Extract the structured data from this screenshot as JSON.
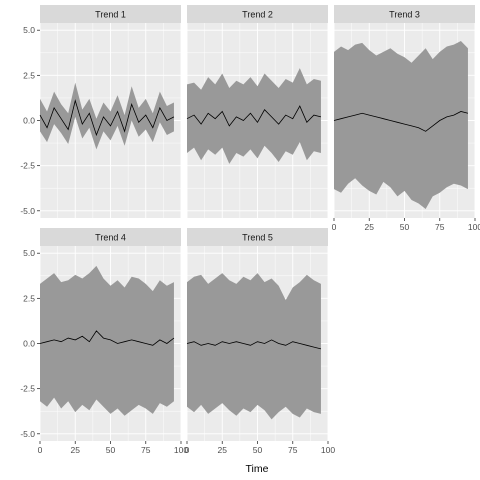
{
  "chart_data": {
    "type": "area",
    "facet_variable": "trend",
    "xlabel": "Time",
    "ylabel": "",
    "xlim": [
      0,
      100
    ],
    "ylim": [
      -5.4,
      5.4
    ],
    "x_ticks": [
      0,
      25,
      50,
      75,
      100
    ],
    "y_ticks": [
      -5.0,
      -2.5,
      0.0,
      2.5,
      5.0
    ],
    "x_tick_labels": [
      "0",
      "25",
      "50",
      "75",
      "100"
    ],
    "y_tick_labels": [
      "-5.0",
      "-2.5",
      "0.0",
      "2.5",
      "5.0"
    ],
    "grid": true,
    "colors": {
      "ribbon": "#999999",
      "line": "#000000",
      "panel": "#ebebeb",
      "strip": "#d9d9d9"
    },
    "series": [
      {
        "name": "Trend 1",
        "x": [
          0,
          5,
          10,
          15,
          20,
          25,
          30,
          35,
          40,
          45,
          50,
          55,
          60,
          65,
          70,
          75,
          80,
          85,
          90,
          95
        ],
        "mean": [
          0.3,
          -0.4,
          0.7,
          0.1,
          -0.5,
          1.1,
          -0.2,
          0.4,
          -0.8,
          0.2,
          -0.3,
          0.5,
          -0.6,
          0.9,
          -0.1,
          0.3,
          -0.4,
          0.7,
          0.0,
          0.2
        ],
        "lower": [
          -0.6,
          -1.2,
          -0.2,
          -0.7,
          -1.3,
          0.2,
          -1.0,
          -0.4,
          -1.6,
          -0.6,
          -1.1,
          -0.3,
          -1.4,
          0.0,
          -0.9,
          -0.5,
          -1.2,
          -0.1,
          -0.8,
          -0.6
        ],
        "upper": [
          1.2,
          0.5,
          1.6,
          0.9,
          0.4,
          2.1,
          0.6,
          1.2,
          0.1,
          1.0,
          0.5,
          1.4,
          0.3,
          1.9,
          0.7,
          1.2,
          0.4,
          1.6,
          0.8,
          1.0
        ]
      },
      {
        "name": "Trend 2",
        "x": [
          0,
          5,
          10,
          15,
          20,
          25,
          30,
          35,
          40,
          45,
          50,
          55,
          60,
          65,
          70,
          75,
          80,
          85,
          90,
          95
        ],
        "mean": [
          0.1,
          0.3,
          -0.2,
          0.4,
          0.1,
          0.5,
          -0.3,
          0.2,
          0.0,
          0.4,
          -0.1,
          0.6,
          0.2,
          -0.2,
          0.3,
          0.1,
          0.8,
          -0.1,
          0.3,
          0.2
        ],
        "lower": [
          -1.8,
          -1.5,
          -2.2,
          -1.6,
          -1.9,
          -1.5,
          -2.4,
          -1.8,
          -2.0,
          -1.6,
          -2.1,
          -1.4,
          -1.8,
          -2.3,
          -1.7,
          -1.9,
          -1.2,
          -2.2,
          -1.7,
          -1.8
        ],
        "upper": [
          2.0,
          2.1,
          1.7,
          2.4,
          2.0,
          2.6,
          1.8,
          2.2,
          2.0,
          2.4,
          1.9,
          2.6,
          2.2,
          1.8,
          2.3,
          2.1,
          2.9,
          2.0,
          2.3,
          2.2
        ]
      },
      {
        "name": "Trend 3",
        "x": [
          0,
          5,
          10,
          15,
          20,
          25,
          30,
          35,
          40,
          45,
          50,
          55,
          60,
          65,
          70,
          75,
          80,
          85,
          90,
          95
        ],
        "mean": [
          0.0,
          0.1,
          0.2,
          0.3,
          0.4,
          0.3,
          0.2,
          0.1,
          0.0,
          -0.1,
          -0.2,
          -0.3,
          -0.4,
          -0.6,
          -0.3,
          0.0,
          0.2,
          0.3,
          0.5,
          0.4
        ],
        "lower": [
          -3.8,
          -4.0,
          -3.5,
          -3.2,
          -3.6,
          -3.9,
          -4.1,
          -3.4,
          -3.7,
          -4.2,
          -3.9,
          -4.4,
          -4.6,
          -4.9,
          -4.2,
          -4.0,
          -3.7,
          -3.5,
          -3.6,
          -3.8
        ],
        "upper": [
          3.8,
          4.1,
          3.9,
          4.2,
          4.3,
          3.9,
          3.6,
          3.8,
          4.0,
          3.7,
          3.5,
          3.2,
          3.6,
          4.0,
          3.4,
          3.8,
          4.1,
          4.2,
          4.4,
          4.0
        ]
      },
      {
        "name": "Trend 4",
        "x": [
          0,
          5,
          10,
          15,
          20,
          25,
          30,
          35,
          40,
          45,
          50,
          55,
          60,
          65,
          70,
          75,
          80,
          85,
          90,
          95
        ],
        "mean": [
          0.0,
          0.1,
          0.2,
          0.1,
          0.3,
          0.2,
          0.4,
          0.1,
          0.7,
          0.3,
          0.2,
          0.0,
          0.1,
          0.2,
          0.1,
          0.0,
          -0.1,
          0.2,
          0.0,
          0.3
        ],
        "lower": [
          -3.2,
          -3.5,
          -3.0,
          -3.6,
          -3.2,
          -3.8,
          -3.4,
          -3.7,
          -3.1,
          -3.5,
          -3.9,
          -3.6,
          -4.0,
          -3.7,
          -3.4,
          -3.6,
          -3.9,
          -3.3,
          -3.5,
          -3.2
        ],
        "upper": [
          3.3,
          3.6,
          3.9,
          3.4,
          3.5,
          3.8,
          3.6,
          3.9,
          4.3,
          3.6,
          3.2,
          3.5,
          3.1,
          3.7,
          3.6,
          3.3,
          2.9,
          3.5,
          3.2,
          3.4
        ]
      },
      {
        "name": "Trend 5",
        "x": [
          0,
          5,
          10,
          15,
          20,
          25,
          30,
          35,
          40,
          45,
          50,
          55,
          60,
          65,
          70,
          75,
          80,
          85,
          90,
          95
        ],
        "mean": [
          0.0,
          0.1,
          -0.1,
          0.0,
          -0.1,
          0.1,
          0.0,
          0.1,
          0.0,
          -0.1,
          0.1,
          0.0,
          0.2,
          0.0,
          -0.1,
          0.1,
          0.0,
          -0.1,
          -0.2,
          -0.3
        ],
        "lower": [
          -3.5,
          -3.8,
          -3.4,
          -3.9,
          -3.6,
          -3.3,
          -3.7,
          -4.0,
          -3.6,
          -3.8,
          -3.4,
          -3.7,
          -4.2,
          -3.8,
          -3.5,
          -3.9,
          -4.1,
          -3.6,
          -3.8,
          -3.9
        ],
        "upper": [
          3.4,
          3.7,
          3.8,
          3.3,
          3.6,
          3.9,
          3.5,
          3.3,
          3.7,
          3.5,
          3.9,
          3.4,
          3.6,
          3.2,
          2.4,
          3.1,
          3.4,
          3.8,
          3.5,
          3.3
        ]
      }
    ]
  }
}
